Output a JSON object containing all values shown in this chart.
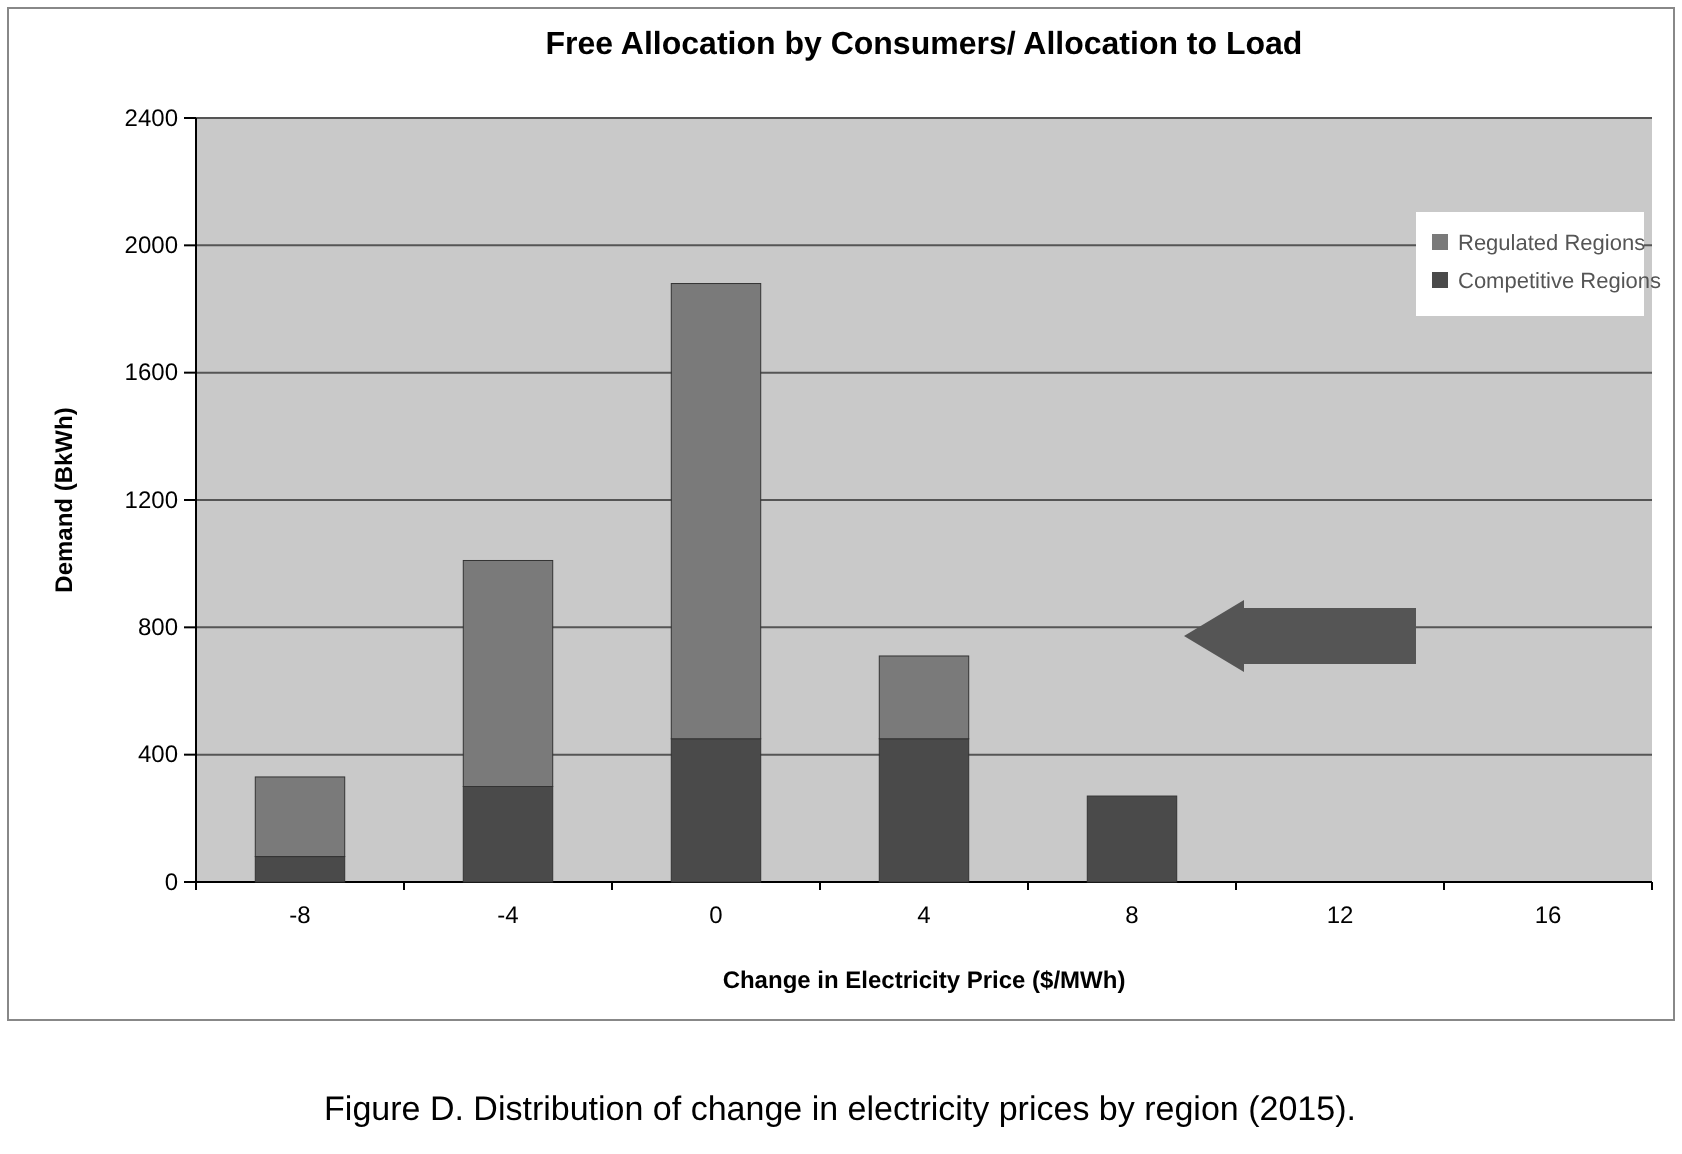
{
  "chart_data": {
    "type": "bar",
    "title": "Free Allocation by Consumers/ Allocation to Load",
    "xlabel": "Change in Electricity Price ($/MWh)",
    "ylabel": "Demand (BkWh)",
    "categories": [
      "-8",
      "-4",
      "0",
      "4",
      "8",
      "12",
      "16"
    ],
    "stacked": true,
    "series": [
      {
        "name": "Competitive Regions",
        "color": "#4a4a4a",
        "values": [
          80,
          300,
          450,
          450,
          270,
          null,
          null
        ]
      },
      {
        "name": "Regulated Regions",
        "color": "#7a7a7a",
        "values": [
          250,
          710,
          1430,
          260,
          null,
          null,
          null
        ]
      }
    ],
    "ylim": [
      0,
      2400
    ],
    "yticks": [
      0,
      400,
      800,
      1200,
      1600,
      2000,
      2400
    ],
    "grid": "y",
    "legend": "top right",
    "annotations": [
      "Figure D. Distribution of change in electricity prices by region (2015)."
    ]
  }
}
